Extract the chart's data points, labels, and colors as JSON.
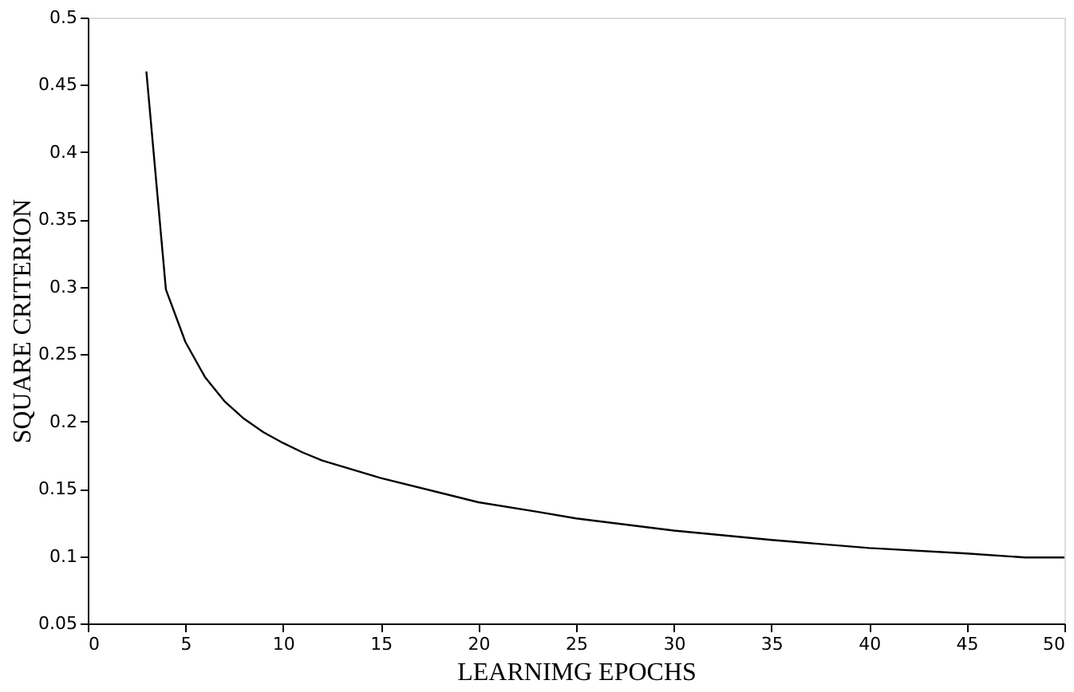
{
  "chart_data": {
    "type": "line",
    "xlabel": "LEARNIMG EPOCHS",
    "ylabel": "SQUARE  CRITERION",
    "x": [
      3,
      4,
      5,
      6,
      7,
      8,
      9,
      10,
      11,
      12,
      15,
      20,
      23,
      25,
      30,
      35,
      40,
      45,
      48,
      50
    ],
    "series": [
      {
        "color": "#000000",
        "values": [
          0.46,
          0.298,
          0.259,
          0.233,
          0.215,
          0.202,
          0.192,
          0.184,
          0.177,
          0.171,
          0.158,
          0.14,
          0.133,
          0.128,
          0.119,
          0.112,
          0.106,
          0.102,
          0.099,
          0.099
        ]
      }
    ],
    "xlim": [
      0,
      50
    ],
    "xticks": [
      0,
      5,
      10,
      15,
      20,
      25,
      30,
      35,
      40,
      45,
      50
    ],
    "ylim": [
      0.05,
      0.5
    ],
    "yticks": [
      0.05,
      0.1,
      0.15,
      0.2,
      0.25,
      0.3,
      0.35,
      0.4,
      0.45,
      0.5
    ],
    "grid": false,
    "legend": false,
    "marker": "none",
    "line_style": "solid"
  }
}
